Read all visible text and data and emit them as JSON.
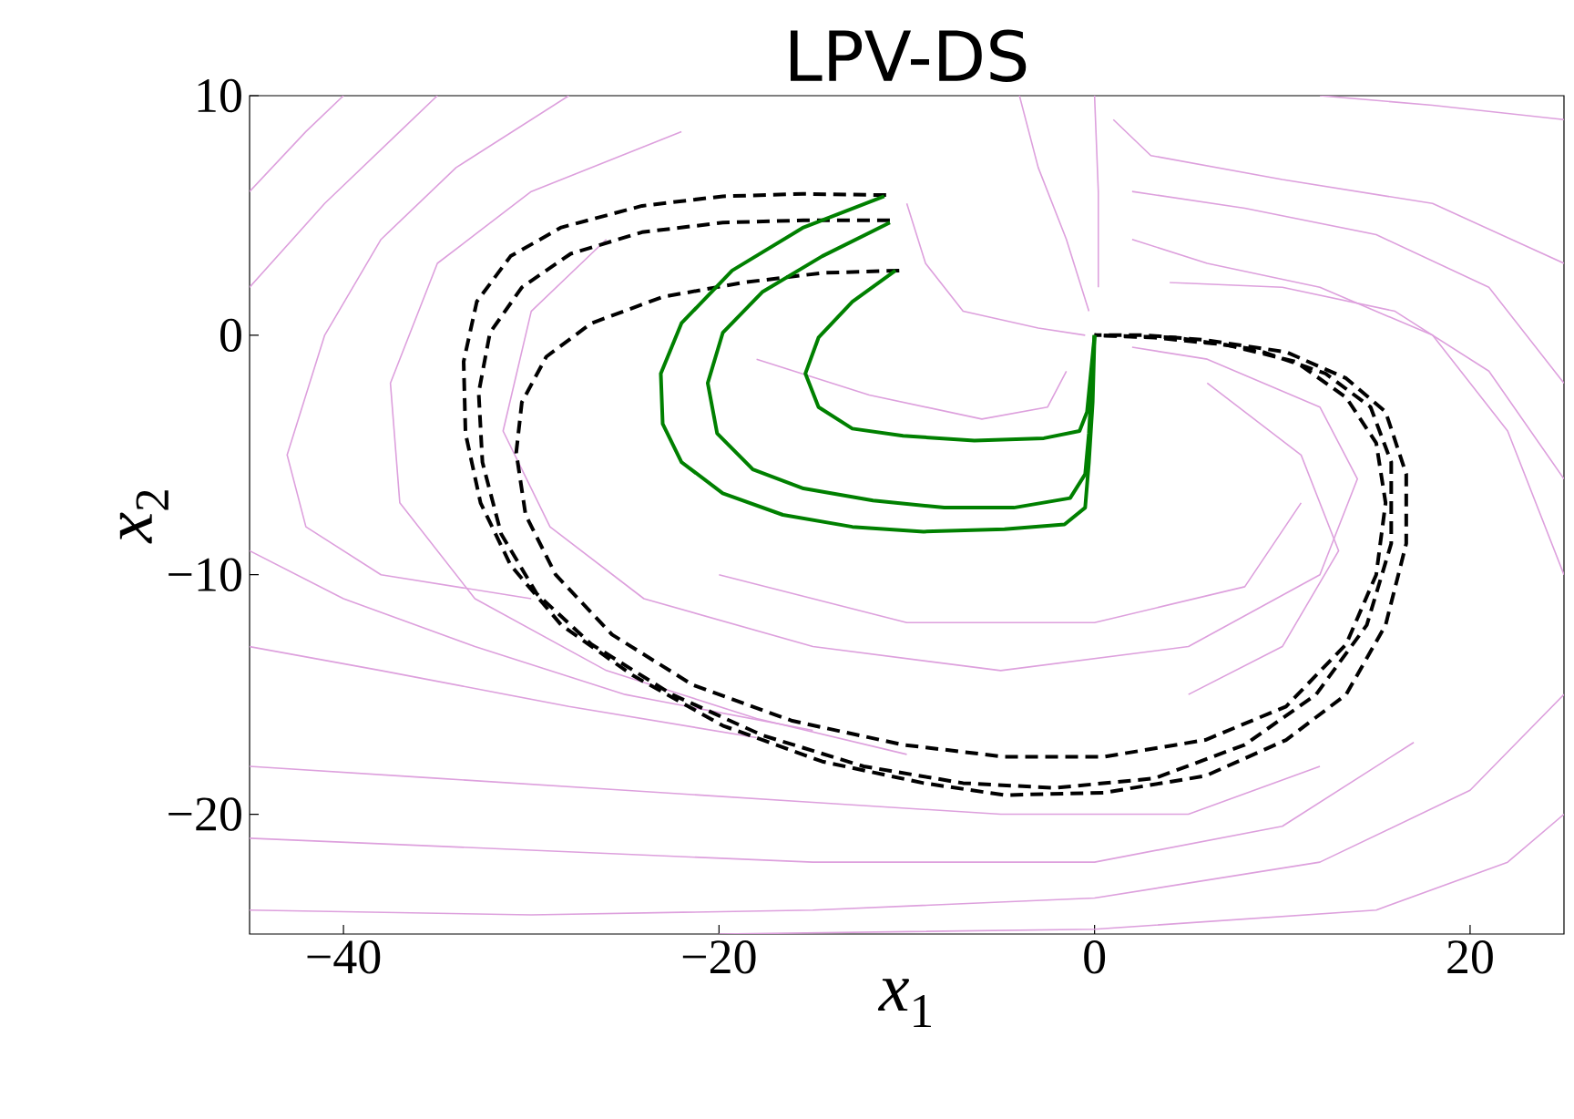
{
  "chart_data": {
    "type": "line",
    "title": "LPV-DS",
    "xlabel": "*x*$_{1}$",
    "ylabel": "*x*$_{2}$",
    "xlim": [
      -45,
      25
    ],
    "ylim": [
      -25,
      10
    ],
    "xticks": [
      {
        "value": -40,
        "label": "−40"
      },
      {
        "value": -20,
        "label": "−20"
      },
      0,
      20
    ],
    "yticks": [
      {
        "value": -20,
        "label": "−20"
      },
      {
        "value": -10,
        "label": "−10"
      },
      0,
      10
    ],
    "grid": false,
    "series": [
      {
        "color": "#dda0dd",
        "x": [
          -45,
          -41,
          -37,
          -35
        ],
        "values": [
          2,
          5.5,
          8.5,
          10
        ]
      },
      {
        "color": "#dda0dd",
        "x": [
          -45,
          -42,
          -40
        ],
        "values": [
          6,
          8.5,
          10
        ]
      },
      {
        "color": "#dda0dd",
        "x": [
          -28,
          -34,
          -38,
          -41,
          -43,
          -42,
          -38,
          -30
        ],
        "values": [
          10,
          7,
          4,
          0,
          -5,
          -8,
          -10,
          -11
        ]
      },
      {
        "color": "#dda0dd",
        "x": [
          -22,
          -30,
          -35,
          -37.5,
          -37,
          -33,
          -26,
          -18,
          -10
        ],
        "values": [
          8.5,
          6,
          3,
          -2,
          -7,
          -11,
          -14,
          -16,
          -17.5
        ]
      },
      {
        "color": "#dda0dd",
        "x": [
          -45,
          -40,
          -33,
          -25,
          -15
        ],
        "values": [
          -9,
          -11,
          -13,
          -15,
          -16.5
        ]
      },
      {
        "color": "#dda0dd",
        "x": [
          -45,
          -38,
          -28,
          -18
        ],
        "values": [
          -13,
          -14,
          -15.5,
          -16.8
        ]
      },
      {
        "color": "#dda0dd",
        "x": [
          -45,
          -35,
          -25,
          -15,
          -5,
          5,
          12
        ],
        "values": [
          -18,
          -18.5,
          -19,
          -19.5,
          -20,
          -20,
          -18
        ]
      },
      {
        "color": "#dda0dd",
        "x": [
          -45,
          -30,
          -15,
          0,
          10,
          17
        ],
        "values": [
          -21,
          -21.5,
          -22,
          -22,
          -20.5,
          -17
        ]
      },
      {
        "color": "#dda0dd",
        "x": [
          -45,
          -30,
          -15,
          0,
          12,
          20,
          25
        ],
        "values": [
          -24,
          -24.2,
          -24,
          -23.5,
          -22,
          -19,
          -15
        ]
      },
      {
        "color": "#dda0dd",
        "x": [
          -20,
          0,
          15,
          22,
          25
        ],
        "values": [
          -25,
          -24.8,
          -24,
          -22,
          -20
        ]
      },
      {
        "color": "#dda0dd",
        "x": [
          25,
          22,
          18,
          12,
          6,
          2
        ],
        "values": [
          -10,
          -4,
          0,
          2,
          3,
          4
        ]
      },
      {
        "color": "#dda0dd",
        "x": [
          25,
          18,
          10,
          3,
          1
        ],
        "values": [
          3,
          5.5,
          6.5,
          7.5,
          9
        ]
      },
      {
        "color": "#dda0dd",
        "x": [
          25,
          18,
          12
        ],
        "values": [
          9,
          9.6,
          10
        ]
      },
      {
        "color": "#dda0dd",
        "x": [
          25,
          21,
          15,
          8,
          2
        ],
        "values": [
          -2,
          2,
          4.2,
          5.3,
          6
        ]
      },
      {
        "color": "#dda0dd",
        "x": [
          -26,
          -30,
          -31.5,
          -29,
          -24,
          -15,
          -5,
          5,
          12,
          14,
          12,
          6,
          2
        ],
        "values": [
          4,
          1,
          -4,
          -8,
          -11,
          -13,
          -14,
          -13,
          -10,
          -6,
          -3,
          -1,
          -0.5
        ]
      },
      {
        "color": "#dda0dd",
        "x": [
          -18,
          -12,
          -6,
          -2.5,
          -1.5
        ],
        "values": [
          -1,
          -2.5,
          -3.5,
          -3,
          -1.5
        ]
      },
      {
        "color": "#dda0dd",
        "x": [
          -10,
          -9,
          -7,
          -3,
          -0.5
        ],
        "values": [
          5.5,
          3,
          1,
          0.3,
          0
        ]
      },
      {
        "color": "#dda0dd",
        "x": [
          -4,
          -3,
          -1.5,
          -0.3
        ],
        "values": [
          10,
          7,
          4,
          1
        ]
      },
      {
        "color": "#dda0dd",
        "x": [
          0,
          0.2,
          0.2
        ],
        "values": [
          10,
          6,
          2
        ]
      },
      {
        "color": "#dda0dd",
        "x": [
          25,
          21,
          16,
          10,
          4
        ],
        "values": [
          -6,
          -1.5,
          1,
          2,
          2.2
        ]
      },
      {
        "color": "#dda0dd",
        "x": [
          5,
          10,
          13,
          11,
          6
        ],
        "values": [
          -15,
          -13,
          -9,
          -5,
          -2
        ]
      },
      {
        "color": "#dda0dd",
        "x": [
          -20,
          -10,
          0,
          8,
          11
        ],
        "values": [
          -10,
          -12,
          -12,
          -10.5,
          -7
        ]
      },
      {
        "color": "#000000",
        "line_style": "dashed",
        "x": [
          -11.1,
          -15.5,
          -19.8,
          -24.1,
          -28.4,
          -31.1,
          -32.9,
          -33.6,
          -33.5,
          -32.7,
          -31.1,
          -28.4,
          -24.6,
          -19.8,
          -14.5,
          -9.1,
          -4.8,
          0.5,
          5.9,
          10.2,
          13.4,
          15.5,
          16.6,
          16.6,
          15.5,
          13.4,
          10.2,
          5.9,
          2.7,
          0
        ],
        "values": [
          5.85,
          5.9,
          5.8,
          5.4,
          4.5,
          3.3,
          1.4,
          -1.1,
          -4.1,
          -7.0,
          -9.6,
          -12.1,
          -14.2,
          -16.3,
          -17.8,
          -18.7,
          -19.2,
          -19.1,
          -18.4,
          -16.9,
          -15.0,
          -12.1,
          -8.7,
          -5.8,
          -3.2,
          -1.8,
          -0.7,
          -0.2,
          0,
          0
        ]
      },
      {
        "color": "#000000",
        "line_style": "dashed",
        "x": [
          -10.9,
          -15.5,
          -19.8,
          -24.1,
          -27.9,
          -30.5,
          -32.2,
          -32.8,
          -32.6,
          -31.6,
          -29.7,
          -26.8,
          -22.5,
          -17.7,
          -12.3,
          -7.0,
          -2.1,
          3.2,
          8.0,
          11.8,
          14.5,
          15.8,
          15.8,
          14.7,
          12.3,
          8.6,
          4.3,
          0
        ],
        "values": [
          4.8,
          4.8,
          4.7,
          4.3,
          3.4,
          2.0,
          0.1,
          -2.4,
          -5.3,
          -8.3,
          -10.8,
          -12.9,
          -15.0,
          -16.7,
          -18.0,
          -18.7,
          -18.9,
          -18.5,
          -17.1,
          -15.0,
          -12.1,
          -8.7,
          -5.3,
          -3.0,
          -1.6,
          -0.6,
          -0.1,
          0
        ]
      },
      {
        "color": "#000000",
        "line_style": "dashed",
        "x": [
          -10.4,
          -14.5,
          -18.7,
          -23.0,
          -26.8,
          -29.2,
          -30.5,
          -30.8,
          -30.3,
          -28.7,
          -25.7,
          -21.4,
          -16.1,
          -10.2,
          -4.8,
          0.5,
          5.9,
          10.2,
          13.4,
          15.0,
          15.5,
          15.0,
          13.4,
          10.7,
          7.0,
          3.2,
          0
        ],
        "values": [
          2.7,
          2.6,
          2.2,
          1.6,
          0.5,
          -0.9,
          -2.8,
          -4.9,
          -7.5,
          -10.0,
          -12.5,
          -14.6,
          -16.1,
          -17.1,
          -17.6,
          -17.6,
          -16.9,
          -15.5,
          -12.9,
          -10.0,
          -7.0,
          -4.5,
          -2.6,
          -1.1,
          -0.4,
          -0.1,
          0
        ]
      },
      {
        "color": "#008000",
        "line_style": "solid",
        "x": [
          -11.2,
          -15.5,
          -19.3,
          -22.0,
          -23.1,
          -23.0,
          -22.0,
          -19.8,
          -16.6,
          -12.9,
          -9.1,
          -4.8,
          -1.6,
          -0.5,
          -0.3,
          -0.1,
          0
        ],
        "values": [
          5.8,
          4.5,
          2.7,
          0.5,
          -1.6,
          -3.7,
          -5.3,
          -6.6,
          -7.5,
          -8.0,
          -8.2,
          -8.1,
          -7.9,
          -7.2,
          -5.3,
          -2.8,
          0
        ]
      },
      {
        "color": "#008000",
        "line_style": "solid",
        "x": [
          -10.9,
          -14.5,
          -17.7,
          -19.8,
          -20.6,
          -20.1,
          -18.2,
          -15.5,
          -11.8,
          -8.0,
          -4.3,
          -1.3,
          -0.5,
          -0.3,
          0
        ],
        "values": [
          4.7,
          3.3,
          1.8,
          0.1,
          -2.0,
          -4.1,
          -5.6,
          -6.4,
          -6.9,
          -7.2,
          -7.2,
          -6.8,
          -5.8,
          -4.1,
          0
        ]
      },
      {
        "color": "#008000",
        "line_style": "solid",
        "x": [
          -10.6,
          -12.9,
          -14.7,
          -15.4,
          -14.7,
          -12.9,
          -10.2,
          -6.4,
          -2.7,
          -0.8,
          -0.4,
          -0.2,
          0
        ],
        "values": [
          2.7,
          1.4,
          -0.1,
          -1.6,
          -3.0,
          -3.9,
          -4.2,
          -4.4,
          -4.3,
          -4.0,
          -3.2,
          -1.6,
          0
        ]
      }
    ]
  }
}
